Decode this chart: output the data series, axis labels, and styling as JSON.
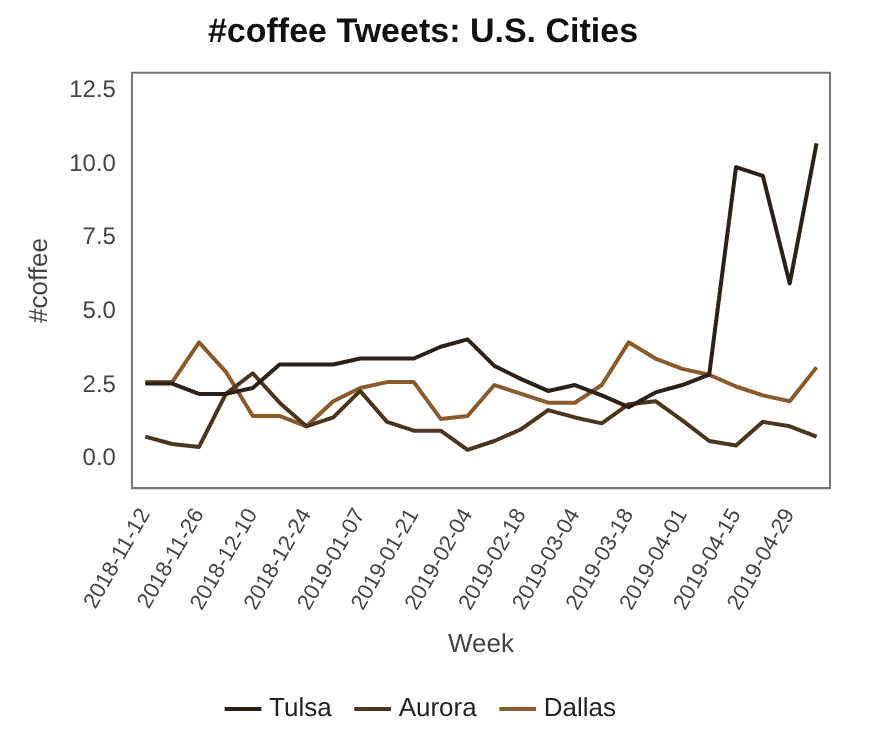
{
  "chart_data": {
    "type": "line",
    "title": "#coffee Tweets: U.S. Cities",
    "xlabel": "Week",
    "ylabel": "#coffee",
    "categories": [
      "2018-11-12",
      null,
      "2018-11-26",
      null,
      "2018-12-10",
      null,
      "2018-12-24",
      null,
      "2019-01-07",
      null,
      "2019-01-21",
      null,
      "2019-02-04",
      null,
      "2019-02-18",
      null,
      "2019-03-04",
      null,
      "2019-03-18",
      null,
      "2019-04-01",
      null,
      "2019-04-15",
      null,
      "2019-04-29",
      null
    ],
    "series": [
      {
        "name": "Tulsa",
        "color": "#2b2118",
        "values": [
          2.55,
          2.55,
          2.2,
          2.2,
          2.4,
          3.2,
          3.2,
          3.2,
          3.4,
          3.4,
          3.4,
          3.8,
          4.05,
          3.15,
          2.7,
          2.3,
          2.5,
          2.15,
          1.75,
          2.25,
          2.5,
          2.85,
          9.9,
          9.6,
          5.95,
          10.7
        ]
      },
      {
        "name": "Aurora",
        "color": "#4a3520",
        "values": [
          0.75,
          0.5,
          0.4,
          2.2,
          2.9,
          1.9,
          1.1,
          1.4,
          2.3,
          1.25,
          0.95,
          0.95,
          0.3,
          0.6,
          1.0,
          1.65,
          1.4,
          1.2,
          1.85,
          1.95,
          1.3,
          0.6,
          0.45,
          1.25,
          1.1,
          0.75
        ]
      },
      {
        "name": "Dallas",
        "color": "#8b5a2b",
        "values": [
          2.6,
          2.6,
          3.95,
          2.95,
          1.45,
          1.45,
          1.1,
          1.95,
          2.4,
          2.6,
          2.6,
          1.35,
          1.45,
          2.5,
          2.2,
          1.9,
          1.9,
          2.5,
          3.95,
          3.4,
          3.05,
          2.85,
          2.45,
          2.15,
          1.95,
          3.1
        ]
      }
    ],
    "ylim": [
      -1,
      13.1
    ],
    "yticks": [
      {
        "value": 0,
        "label": "0.0"
      },
      {
        "value": 2.5,
        "label": "2.5"
      },
      {
        "value": 5,
        "label": "5.0"
      },
      {
        "value": 7.5,
        "label": "7.5"
      },
      {
        "value": 10,
        "label": "10.0"
      },
      {
        "value": 12.5,
        "label": "12.5"
      }
    ],
    "grid": false,
    "legend": "bottom",
    "marker": "none",
    "line_style": "solid"
  }
}
